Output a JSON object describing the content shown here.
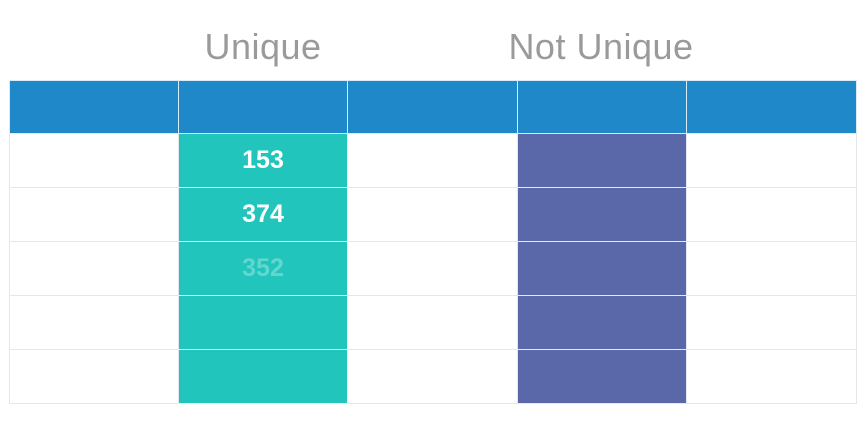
{
  "headings": {
    "unique": "Unique",
    "not_unique": "Not Unique"
  },
  "colors": {
    "header_bar": "#1e88c8",
    "unique_column": "#22c5bb",
    "not_unique_column": "#5a67a8",
    "heading_text": "#9a9a9a"
  },
  "unique_values": [
    "153",
    "374",
    "352",
    "",
    ""
  ],
  "faded_row_index": 2
}
